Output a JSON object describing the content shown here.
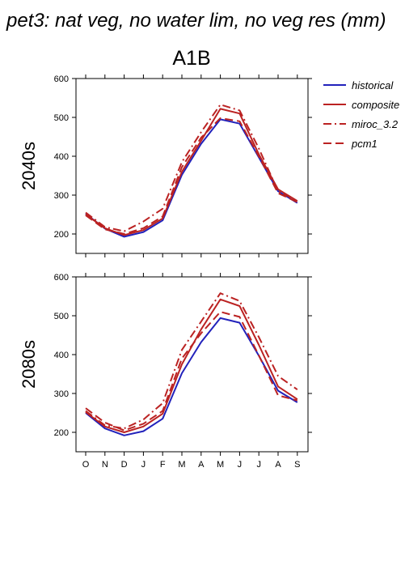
{
  "figure": {
    "title": "pet3: nat veg, no water lim, no veg res (mm)",
    "scenario": "A1B"
  },
  "colors": {
    "historical": "#2222bb",
    "projection": "#bb2222",
    "axis": "#000000"
  },
  "legend": [
    {
      "key": "historical",
      "label": "historical",
      "color": "#2222bb",
      "dash": "solid"
    },
    {
      "key": "composite",
      "label": "composite",
      "color": "#bb2222",
      "dash": "solid"
    },
    {
      "key": "miroc",
      "label": "miroc_3.2",
      "color": "#bb2222",
      "dash": "dashdot"
    },
    {
      "key": "pcm1",
      "label": "pcm1",
      "color": "#bb2222",
      "dash": "dashed"
    }
  ],
  "chart_data": [
    {
      "type": "line",
      "panel_label": "2040s",
      "categories": [
        "O",
        "N",
        "D",
        "J",
        "F",
        "M",
        "A",
        "M",
        "J",
        "J",
        "A",
        "S"
      ],
      "ylim": [
        150,
        600
      ],
      "yticks": [
        200,
        300,
        400,
        500,
        600
      ],
      "grid": false,
      "legend_position": "right",
      "series": [
        {
          "name": "historical",
          "key": "historical",
          "values": [
            252,
            214,
            193,
            205,
            235,
            352,
            432,
            495,
            484,
            397,
            310,
            280
          ]
        },
        {
          "name": "composite",
          "key": "composite",
          "values": [
            250,
            215,
            197,
            210,
            240,
            360,
            440,
            522,
            510,
            405,
            315,
            285
          ]
        },
        {
          "name": "miroc_3.2",
          "key": "miroc",
          "values": [
            255,
            218,
            207,
            232,
            265,
            385,
            462,
            533,
            518,
            420,
            310,
            285
          ]
        },
        {
          "name": "pcm1",
          "key": "pcm1",
          "values": [
            248,
            212,
            200,
            215,
            245,
            372,
            448,
            498,
            490,
            400,
            305,
            282
          ]
        }
      ]
    },
    {
      "type": "line",
      "panel_label": "2080s",
      "categories": [
        "O",
        "N",
        "D",
        "J",
        "F",
        "M",
        "A",
        "M",
        "J",
        "J",
        "A",
        "S"
      ],
      "ylim": [
        150,
        600
      ],
      "yticks": [
        200,
        300,
        400,
        500,
        600
      ],
      "grid": false,
      "legend_position": "none",
      "series": [
        {
          "name": "historical",
          "key": "historical",
          "values": [
            250,
            210,
            192,
            203,
            235,
            352,
            432,
            494,
            482,
            397,
            307,
            277
          ]
        },
        {
          "name": "composite",
          "key": "composite",
          "values": [
            252,
            215,
            200,
            215,
            248,
            375,
            465,
            542,
            525,
            425,
            318,
            285
          ]
        },
        {
          "name": "miroc_3.2",
          "key": "miroc",
          "values": [
            255,
            218,
            210,
            233,
            275,
            412,
            485,
            558,
            538,
            445,
            345,
            310
          ]
        },
        {
          "name": "pcm1",
          "key": "pcm1",
          "values": [
            262,
            225,
            205,
            222,
            255,
            390,
            455,
            510,
            497,
            398,
            295,
            282
          ]
        }
      ]
    }
  ]
}
